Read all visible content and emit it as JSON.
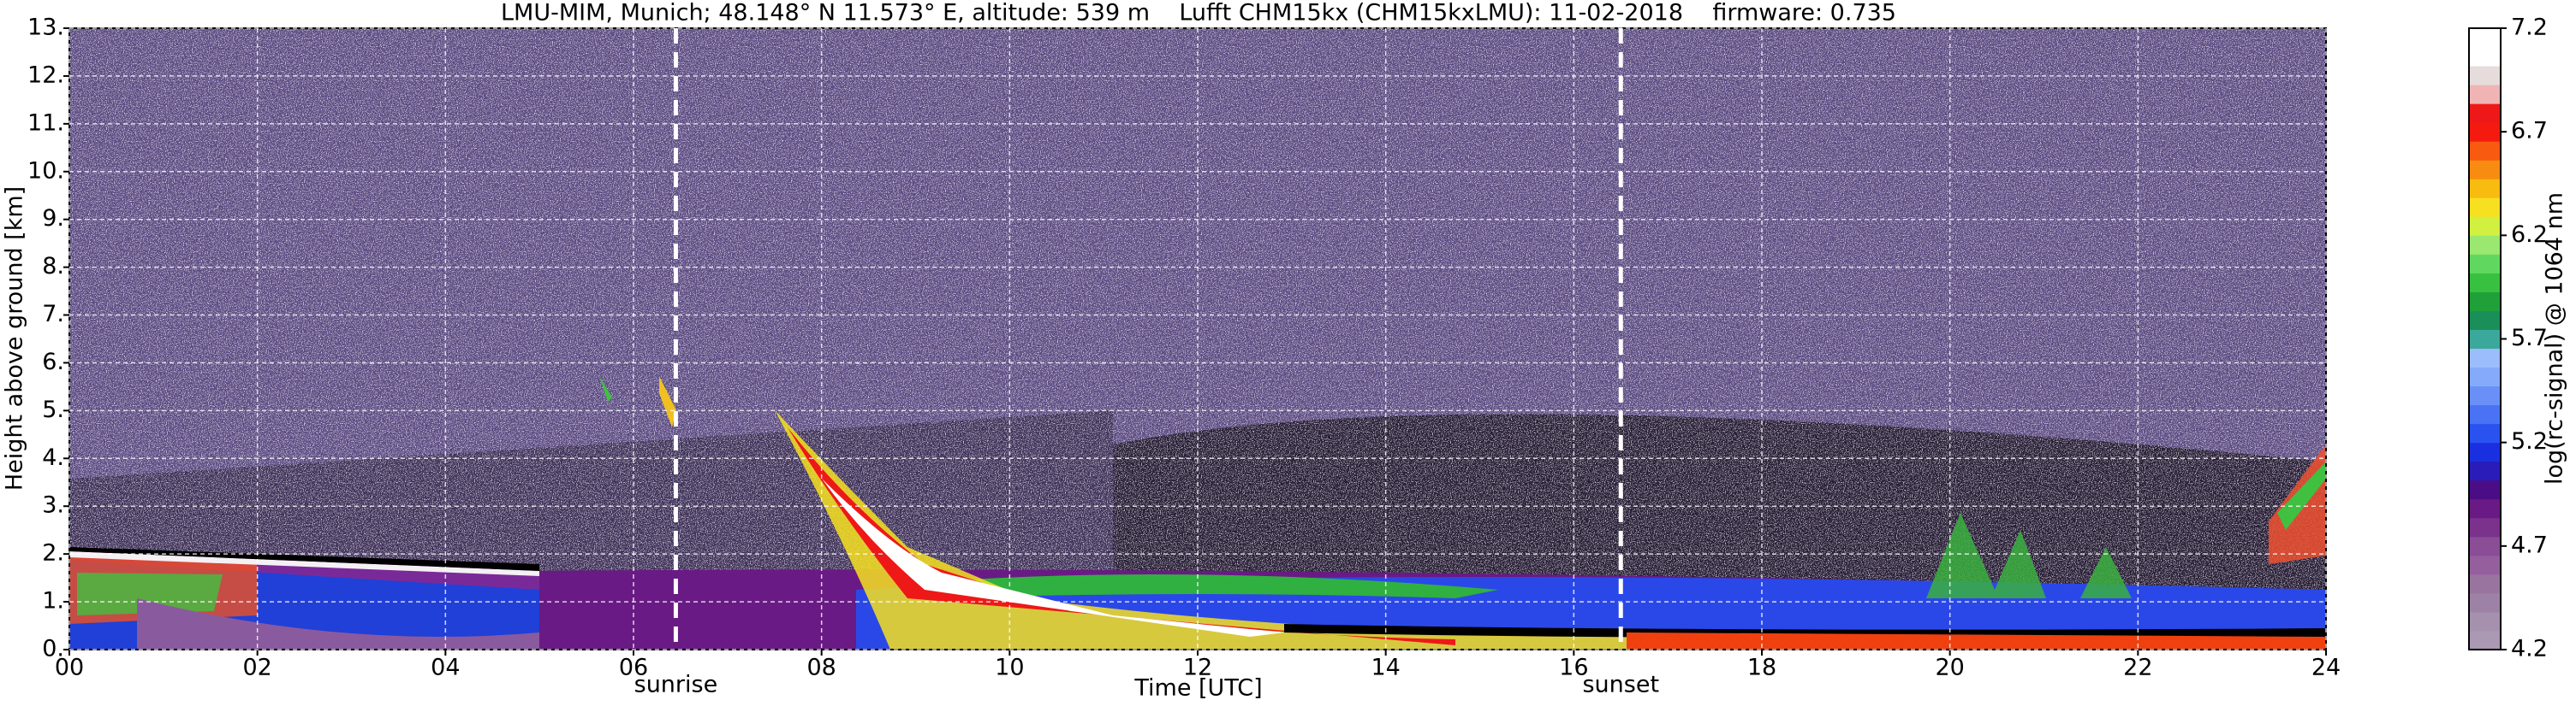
{
  "chart_data": {
    "type": "heatmap",
    "title": "LMU-MIM, Munich; 48.148° N 11.573° E, altitude: 539 m    Lufft CHM15kx (CHM15kxLMU): 11-02-2018    firmware: 0.735",
    "xlabel": "Time [UTC]",
    "ylabel": "Height above ground [km]",
    "xlim": [
      0,
      24
    ],
    "xticks": [
      {
        "value": 0,
        "label": "00"
      },
      {
        "value": 2,
        "label": "02"
      },
      {
        "value": 4,
        "label": "04"
      },
      {
        "value": 6,
        "label": "06"
      },
      {
        "value": 8,
        "label": "08"
      },
      10,
      12,
      14,
      16,
      18,
      20,
      22,
      24
    ],
    "ylim": [
      0,
      13
    ],
    "yticks": [
      {
        "value": 0,
        "label": "0."
      },
      {
        "value": 1,
        "label": "1."
      },
      {
        "value": 2,
        "label": "2."
      },
      {
        "value": 3,
        "label": "3."
      },
      {
        "value": 4,
        "label": "4."
      },
      {
        "value": 5,
        "label": "5."
      },
      {
        "value": 6,
        "label": "6."
      },
      {
        "value": 7,
        "label": "7."
      },
      {
        "value": 8,
        "label": "8."
      },
      {
        "value": 9,
        "label": "9."
      },
      {
        "value": 10,
        "label": "10."
      },
      {
        "value": 11,
        "label": "11."
      },
      {
        "value": 12,
        "label": "12."
      },
      {
        "value": 13,
        "label": "13."
      }
    ],
    "grid": true,
    "annotations": [
      {
        "text": "sunrise",
        "x": 6.45
      },
      {
        "text": "sunset",
        "x": 16.5
      }
    ],
    "colorbar": {
      "label": "log(rc-signal) @ 1064 nm",
      "lim": [
        4.2,
        7.2
      ],
      "ticks": [
        4.2,
        4.7,
        5.2,
        5.7,
        6.2,
        6.7,
        7.2
      ],
      "colors": [
        "#ab98b2",
        "#a590ad",
        "#9e82a6",
        "#98749f",
        "#955f9e",
        "#8a4d96",
        "#7a328c",
        "#6a1a84",
        "#4a0d86",
        "#2a1cb8",
        "#1a30e0",
        "#2a52f0",
        "#4a72f5",
        "#6a90f8",
        "#86aafa",
        "#9cbdfb",
        "#3aa89a",
        "#1a8f5a",
        "#20a038",
        "#38c040",
        "#60d860",
        "#9ae870",
        "#d2f040",
        "#f6e020",
        "#f8bc10",
        "#f88c10",
        "#f85a10",
        "#f41a10",
        "#ee1818",
        "#f0b4b4",
        "#e6dcdc",
        "#ffffff",
        "#ffffff"
      ]
    }
  }
}
